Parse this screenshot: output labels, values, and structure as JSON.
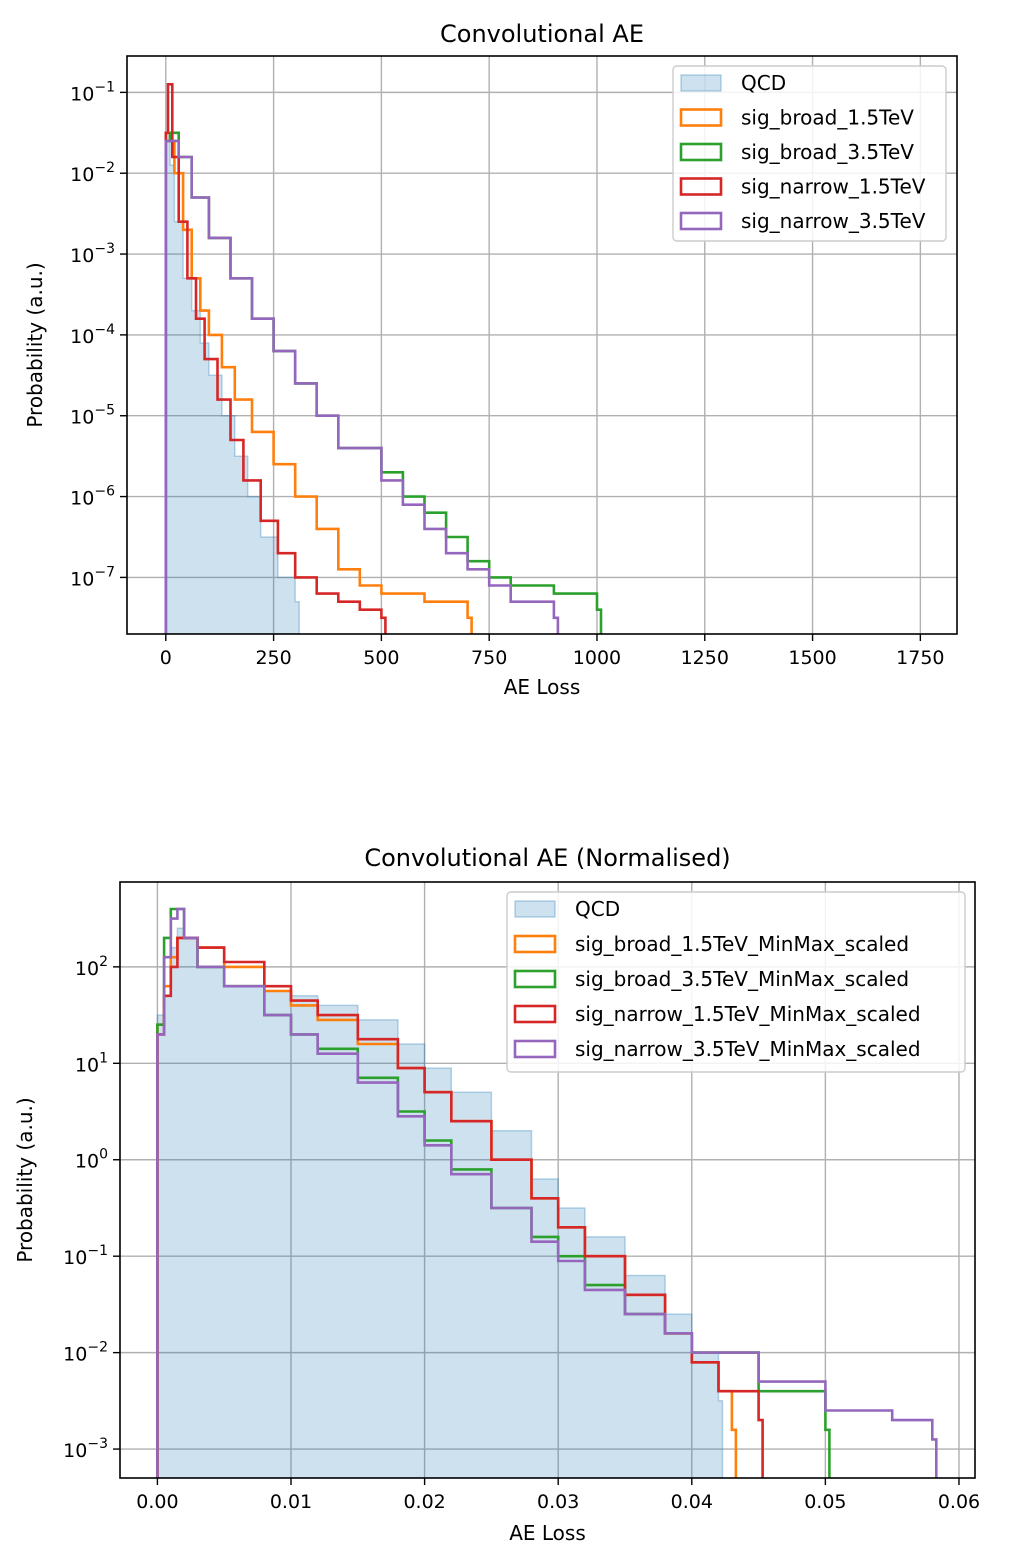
{
  "chart_data": [
    {
      "type": "histogram",
      "title": "Convolutional AE",
      "xlabel": "AE Loss",
      "ylabel": "Probability (a.u.)",
      "xlim": [
        -90,
        1835
      ],
      "ylim_log10": [
        -7.7,
        -0.55
      ],
      "y_scale": "log",
      "grid": true,
      "legend_position": "top-right",
      "x_ticks": [
        {
          "value": 0,
          "label": "0"
        },
        {
          "value": 250,
          "label": "250"
        },
        {
          "value": 500,
          "label": "500"
        },
        {
          "value": 750,
          "label": "750"
        },
        {
          "value": 1000,
          "label": "1000"
        },
        {
          "value": 1250,
          "label": "1250"
        },
        {
          "value": 1500,
          "label": "1500"
        },
        {
          "value": 1750,
          "label": "1750"
        }
      ],
      "y_ticks": [
        {
          "exp": -1,
          "label": "10",
          "sup": "−1"
        },
        {
          "exp": -2,
          "label": "10",
          "sup": "−2"
        },
        {
          "exp": -3,
          "label": "10",
          "sup": "−3"
        },
        {
          "exp": -4,
          "label": "10",
          "sup": "−4"
        },
        {
          "exp": -5,
          "label": "10",
          "sup": "−5"
        },
        {
          "exp": -6,
          "label": "10",
          "sup": "−6"
        },
        {
          "exp": -7,
          "label": "10",
          "sup": "−7"
        }
      ],
      "series": [
        {
          "name": "QCD",
          "style": "filled",
          "color": "#1f77b4",
          "x": [
            0,
            10,
            20,
            40,
            60,
            80,
            100,
            130,
            160,
            190,
            220,
            260,
            300
          ],
          "log10_y": [
            -1.5,
            -1.9,
            -2.6,
            -3.3,
            -3.7,
            -4.1,
            -4.5,
            -5.0,
            -5.5,
            -6.0,
            -6.5,
            -7.0,
            -7.3
          ]
        },
        {
          "name": "sig_broad_1.5TeV",
          "style": "step",
          "color": "#ff7f0e",
          "x": [
            0,
            10,
            20,
            40,
            60,
            80,
            100,
            130,
            160,
            200,
            250,
            300,
            350,
            400,
            450,
            500,
            550,
            600,
            650,
            700
          ],
          "log10_y": [
            -1.5,
            -1.6,
            -2.0,
            -2.7,
            -3.3,
            -3.7,
            -4.0,
            -4.4,
            -4.8,
            -5.2,
            -5.6,
            -6.0,
            -6.4,
            -6.9,
            -7.1,
            -7.2,
            -7.2,
            -7.3,
            -7.3,
            -7.5
          ]
        },
        {
          "name": "sig_broad_3.5TeV",
          "style": "step",
          "color": "#2ca02c",
          "x": [
            0,
            10,
            30,
            60,
            100,
            150,
            200,
            250,
            300,
            350,
            400,
            500,
            550,
            600,
            650,
            700,
            750,
            800,
            900,
            1000
          ],
          "log10_y": [
            -1.6,
            -1.5,
            -1.8,
            -2.3,
            -2.8,
            -3.3,
            -3.8,
            -4.2,
            -4.6,
            -5.0,
            -5.4,
            -5.7,
            -6.0,
            -6.2,
            -6.5,
            -6.8,
            -7.0,
            -7.1,
            -7.2,
            -7.4
          ]
        },
        {
          "name": "sig_narrow_1.5TeV",
          "style": "step",
          "color": "#d62728",
          "x": [
            0,
            5,
            15,
            30,
            50,
            70,
            90,
            120,
            150,
            180,
            220,
            260,
            300,
            350,
            400,
            450,
            500
          ],
          "log10_y": [
            -1.5,
            -0.9,
            -1.8,
            -2.6,
            -3.3,
            -3.8,
            -4.3,
            -4.8,
            -5.3,
            -5.8,
            -6.3,
            -6.7,
            -7.0,
            -7.2,
            -7.3,
            -7.4,
            -7.5
          ]
        },
        {
          "name": "sig_narrow_3.5TeV",
          "style": "step",
          "color": "#9467bd",
          "x": [
            0,
            10,
            30,
            60,
            100,
            150,
            200,
            250,
            300,
            350,
            400,
            500,
            550,
            600,
            650,
            700,
            750,
            800,
            900
          ],
          "log10_y": [
            -1.6,
            -1.6,
            -1.8,
            -2.3,
            -2.8,
            -3.3,
            -3.8,
            -4.2,
            -4.6,
            -5.0,
            -5.4,
            -5.8,
            -6.1,
            -6.4,
            -6.7,
            -6.9,
            -7.1,
            -7.3,
            -7.5
          ]
        }
      ]
    },
    {
      "type": "histogram",
      "title": "Convolutional AE (Normalised)",
      "xlabel": "AE Loss",
      "ylabel": "Probability (a.u.)",
      "xlim": [
        -0.0028,
        0.0612
      ],
      "ylim_log10": [
        -3.3,
        2.88
      ],
      "y_scale": "log",
      "grid": true,
      "legend_position": "top-right",
      "x_ticks": [
        {
          "value": 0.0,
          "label": "0.00"
        },
        {
          "value": 0.01,
          "label": "0.01"
        },
        {
          "value": 0.02,
          "label": "0.02"
        },
        {
          "value": 0.03,
          "label": "0.03"
        },
        {
          "value": 0.04,
          "label": "0.04"
        },
        {
          "value": 0.05,
          "label": "0.05"
        },
        {
          "value": 0.06,
          "label": "0.06"
        }
      ],
      "y_ticks": [
        {
          "exp": 2,
          "label": "10",
          "sup": "2"
        },
        {
          "exp": 1,
          "label": "10",
          "sup": "1"
        },
        {
          "exp": 0,
          "label": "10",
          "sup": "0"
        },
        {
          "exp": -1,
          "label": "10",
          "sup": "−1"
        },
        {
          "exp": -2,
          "label": "10",
          "sup": "−2"
        },
        {
          "exp": -3,
          "label": "10",
          "sup": "−3"
        }
      ],
      "series": [
        {
          "name": "QCD",
          "style": "filled",
          "color": "#1f77b4",
          "x": [
            0.0,
            0.0005,
            0.001,
            0.0015,
            0.002,
            0.003,
            0.005,
            0.008,
            0.01,
            0.012,
            0.015,
            0.018,
            0.02,
            0.022,
            0.025,
            0.028,
            0.03,
            0.032,
            0.035,
            0.038,
            0.04,
            0.042
          ],
          "log10_y": [
            1.5,
            1.7,
            2.2,
            2.4,
            2.3,
            2.0,
            1.8,
            1.75,
            1.7,
            1.6,
            1.45,
            1.2,
            0.95,
            0.7,
            0.3,
            -0.2,
            -0.5,
            -0.8,
            -1.2,
            -1.6,
            -2.0,
            -2.5
          ]
        },
        {
          "name": "sig_broad_1.5TeV_MinMax_scaled",
          "style": "step",
          "color": "#ff7f0e",
          "x": [
            0.0,
            0.0005,
            0.001,
            0.0015,
            0.002,
            0.003,
            0.005,
            0.008,
            0.01,
            0.012,
            0.015,
            0.018,
            0.02,
            0.022,
            0.025,
            0.028,
            0.03,
            0.032,
            0.035,
            0.038,
            0.04,
            0.042,
            0.043
          ],
          "log10_y": [
            1.4,
            1.8,
            2.1,
            2.3,
            2.3,
            2.2,
            2.0,
            1.75,
            1.6,
            1.45,
            1.2,
            0.95,
            0.7,
            0.4,
            0.0,
            -0.4,
            -0.7,
            -1.0,
            -1.4,
            -1.8,
            -2.1,
            -2.4,
            -2.8
          ]
        },
        {
          "name": "sig_broad_3.5TeV_MinMax_scaled",
          "style": "step",
          "color": "#2ca02c",
          "x": [
            0.0,
            0.0005,
            0.001,
            0.0015,
            0.002,
            0.003,
            0.005,
            0.008,
            0.01,
            0.012,
            0.015,
            0.018,
            0.02,
            0.022,
            0.025,
            0.028,
            0.03,
            0.032,
            0.035,
            0.038,
            0.04,
            0.045,
            0.05
          ],
          "log10_y": [
            1.4,
            2.3,
            2.6,
            2.6,
            2.3,
            2.0,
            1.8,
            1.5,
            1.3,
            1.15,
            0.85,
            0.5,
            0.2,
            -0.1,
            -0.5,
            -0.8,
            -1.0,
            -1.3,
            -1.6,
            -1.8,
            -2.0,
            -2.4,
            -2.8
          ]
        },
        {
          "name": "sig_narrow_1.5TeV_MinMax_scaled",
          "style": "step",
          "color": "#d62728",
          "x": [
            0.0,
            0.0005,
            0.001,
            0.0015,
            0.002,
            0.003,
            0.005,
            0.008,
            0.01,
            0.012,
            0.015,
            0.018,
            0.02,
            0.022,
            0.025,
            0.028,
            0.03,
            0.032,
            0.035,
            0.038,
            0.04,
            0.042,
            0.045
          ],
          "log10_y": [
            1.3,
            1.7,
            2.0,
            2.3,
            2.3,
            2.2,
            2.05,
            1.8,
            1.65,
            1.5,
            1.25,
            0.95,
            0.7,
            0.4,
            0.0,
            -0.4,
            -0.7,
            -1.0,
            -1.4,
            -1.8,
            -2.1,
            -2.4,
            -2.7
          ]
        },
        {
          "name": "sig_narrow_3.5TeV_MinMax_scaled",
          "style": "step",
          "color": "#9467bd",
          "x": [
            0.0,
            0.0005,
            0.001,
            0.0015,
            0.002,
            0.003,
            0.005,
            0.008,
            0.01,
            0.012,
            0.015,
            0.018,
            0.02,
            0.022,
            0.025,
            0.028,
            0.03,
            0.032,
            0.035,
            0.038,
            0.04,
            0.045,
            0.05,
            0.055,
            0.058
          ],
          "log10_y": [
            1.3,
            2.1,
            2.5,
            2.6,
            2.3,
            2.0,
            1.8,
            1.5,
            1.3,
            1.1,
            0.8,
            0.45,
            0.15,
            -0.15,
            -0.5,
            -0.85,
            -1.05,
            -1.35,
            -1.6,
            -1.8,
            -2.0,
            -2.3,
            -2.6,
            -2.7,
            -2.9
          ]
        }
      ]
    }
  ]
}
